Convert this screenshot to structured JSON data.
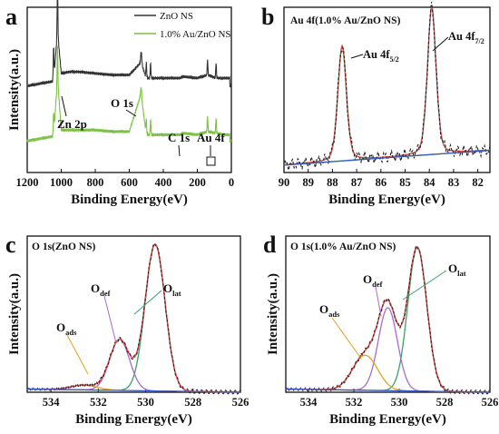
{
  "chart_data": [
    {
      "panel_letter": "a",
      "type": "line",
      "xlabel": "Binding Energy(eV)",
      "ylabel": "Intensity(a.u.)",
      "xlim": [
        1200,
        0
      ],
      "x_reversed": true,
      "x_ticks": [
        "1200",
        "1000",
        "800",
        "600",
        "400",
        "200",
        "0"
      ],
      "legend_placement": "top-right",
      "colors": {
        "ZnO NS": "#333333",
        "1.0% Au/ZnO NS": "#7bc143"
      },
      "series": [
        {
          "name": "ZnO NS",
          "x": [
            1200,
            1100,
            1045,
            1022,
            1000,
            950,
            900,
            800,
            700,
            600,
            531,
            500,
            400,
            300,
            285,
            200,
            140,
            90,
            40,
            10
          ],
          "y": [
            0.55,
            0.57,
            0.58,
            0.9,
            0.63,
            0.64,
            0.64,
            0.63,
            0.62,
            0.62,
            0.7,
            0.6,
            0.6,
            0.6,
            0.61,
            0.6,
            0.62,
            0.6,
            0.6,
            0.6
          ]
        },
        {
          "name": "1.0% Au/ZnO NS",
          "x": [
            1200,
            1100,
            1045,
            1022,
            1000,
            950,
            900,
            800,
            700,
            600,
            531,
            500,
            400,
            300,
            285,
            200,
            140,
            90,
            40,
            10
          ],
          "y": [
            0.2,
            0.22,
            0.23,
            0.6,
            0.27,
            0.27,
            0.27,
            0.27,
            0.26,
            0.26,
            0.5,
            0.24,
            0.24,
            0.24,
            0.25,
            0.24,
            0.26,
            0.25,
            0.24,
            0.24
          ]
        }
      ],
      "peak_annotations": [
        "Zn 2p",
        "O 1s",
        "C 1s",
        "Au 4f"
      ]
    },
    {
      "panel_letter": "b",
      "type": "line",
      "panel_title": "Au 4f(1.0% Au/ZnO NS)",
      "xlabel": "Binding Energy(eV)",
      "xlim": [
        90,
        81.5
      ],
      "x_reversed": true,
      "x_ticks": [
        "90",
        "89",
        "88",
        "87",
        "86",
        "85",
        "84",
        "83",
        "82"
      ],
      "peaks": [
        {
          "name": "Au 4f5/2",
          "center": 87.6,
          "height": 0.78,
          "color": "#8b8b2e"
        },
        {
          "name": "Au 4f7/2",
          "center": 83.9,
          "height": 1.0,
          "color": "#2ab0b8"
        }
      ],
      "background": {
        "color": "#3355cc",
        "from": [
          90,
          0.05
        ],
        "to": [
          81.5,
          0.15
        ]
      },
      "envelope_color": "#e24a4a",
      "raw_color": "#222222"
    },
    {
      "panel_letter": "c",
      "type": "line",
      "panel_title": "O 1s(ZnO NS)",
      "xlabel": "Binding Energy(eV)",
      "ylabel": "Intensity(a.u.)",
      "xlim": [
        535,
        526
      ],
      "x_reversed": true,
      "x_ticks": [
        "534",
        "532",
        "530",
        "528",
        "526"
      ],
      "components": [
        {
          "label": "O",
          "sub": "lat",
          "center": 529.6,
          "height": 0.92,
          "color": "#3aa16a"
        },
        {
          "label": "O",
          "sub": "def",
          "center": 531.1,
          "height": 0.32,
          "color": "#a86ad0"
        },
        {
          "label": "O",
          "sub": "ads",
          "center": 532.6,
          "height": 0.03,
          "color": "#e2a21c"
        }
      ],
      "background": {
        "color": "#3355cc",
        "from": [
          535,
          0.02
        ],
        "to": [
          526,
          0.0
        ]
      },
      "envelope_color": "#e24a4a",
      "raw_color": "#222222"
    },
    {
      "panel_letter": "d",
      "type": "line",
      "panel_title": "O 1s(1.0% Au/ZnO NS)",
      "xlabel": "Binding Energy(eV)",
      "ylabel": "Intensity(a.u.)",
      "xlim": [
        535,
        526
      ],
      "x_reversed": true,
      "x_ticks": [
        "534",
        "532",
        "530",
        "528",
        "526"
      ],
      "components": [
        {
          "label": "O",
          "sub": "lat",
          "center": 529.2,
          "height": 0.9,
          "color": "#3aa16a"
        },
        {
          "label": "O",
          "sub": "def",
          "center": 530.5,
          "height": 0.52,
          "color": "#a86ad0"
        },
        {
          "label": "O",
          "sub": "ads",
          "center": 531.5,
          "height": 0.22,
          "color": "#e2a21c"
        }
      ],
      "background": {
        "color": "#3355cc",
        "from": [
          535,
          0.02
        ],
        "to": [
          526,
          0.0
        ]
      },
      "envelope_color": "#e24a4a",
      "raw_color": "#222222"
    }
  ]
}
